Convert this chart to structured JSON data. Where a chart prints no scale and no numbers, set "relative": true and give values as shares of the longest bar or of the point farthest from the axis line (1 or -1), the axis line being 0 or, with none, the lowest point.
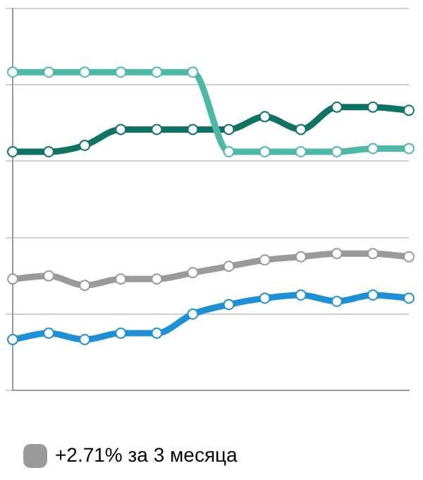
{
  "chart_data": {
    "type": "line",
    "relative": true,
    "categories": [
      null,
      null,
      null,
      null,
      null,
      null,
      null,
      null,
      null,
      null,
      null,
      null
    ],
    "series": [
      {
        "color": "#4db8a8",
        "values": [
          1,
          1,
          1,
          1,
          1,
          1,
          0.75,
          0.75,
          0.75,
          0.75,
          0.76,
          0.76
        ]
      },
      {
        "color": "#0e7364",
        "values": [
          0.75,
          0.75,
          0.77,
          0.82,
          0.82,
          0.82,
          0.82,
          0.86,
          0.82,
          0.89,
          0.89,
          0.88
        ]
      },
      {
        "name": "+2.71% за 3 месяца",
        "color": "#9a9a9a",
        "values": [
          0.35,
          0.36,
          0.33,
          0.35,
          0.35,
          0.37,
          0.39,
          0.41,
          0.42,
          0.43,
          0.43,
          0.42
        ]
      },
      {
        "color": "#1e90d6",
        "values": [
          0.16,
          0.18,
          0.16,
          0.18,
          0.18,
          0.24,
          0.27,
          0.29,
          0.3,
          0.28,
          0.3,
          0.29
        ]
      }
    ],
    "grid": "y",
    "legend": "bottom",
    "marker": "circle",
    "line_style": "solid"
  }
}
